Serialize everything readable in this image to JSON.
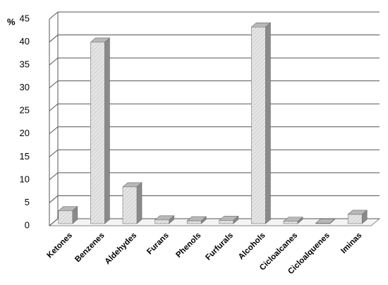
{
  "chart_data": {
    "type": "bar3d",
    "y_label": "%",
    "categories": [
      "Ketones",
      "Benzenes",
      "Aldehydes",
      "Furans",
      "Phenols",
      "Furfurals",
      "Alcohols",
      "Cicloalcanes",
      "Cicloalquenes",
      "Iminas"
    ],
    "values": [
      2.8,
      39.5,
      8,
      0.8,
      0.6,
      0.7,
      42.8,
      0.5,
      0.1,
      2
    ],
    "color": "#dcdcdc",
    "ylim": [
      0,
      45
    ],
    "yticks": [
      0,
      5,
      10,
      15,
      20,
      25,
      30,
      35,
      40,
      45
    ],
    "grid": true
  }
}
